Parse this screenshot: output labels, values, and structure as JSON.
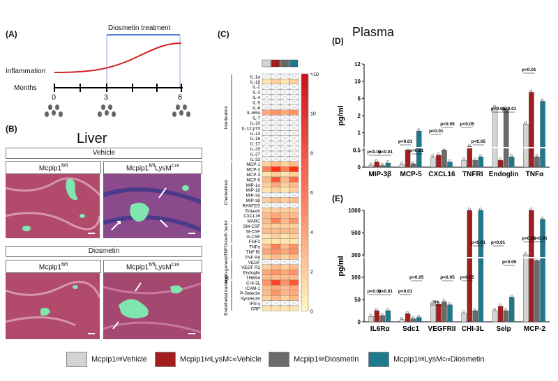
{
  "panels": {
    "A": "(A)",
    "B": "(B)",
    "C": "(C)",
    "D": "(D)",
    "E": "(E)"
  },
  "timeline": {
    "treatment_label": "Diosmetin treatment",
    "inflammation_label": "Inflammation",
    "months_label": "Months",
    "ticks": [
      "0",
      "3",
      "6"
    ]
  },
  "liver": {
    "title": "Liver",
    "vehicle_header": "Vehicle",
    "diosmetin_header": "Diosmetin",
    "col1": "Mcpip1",
    "col1_sup": "fl/fl",
    "col2": "Mcpip1",
    "col2_sup": "fl/fl",
    "col2_tail": "LysM",
    "col2_tail_sup": "Cre"
  },
  "heatmap": {
    "rows": [
      "IL-1α",
      "IL-1β",
      "IL-2",
      "IL-3",
      "IL-4",
      "IL-5",
      "IL-6",
      "IL-6Rα",
      "IL-7",
      "IL-10",
      "IL-12 p70",
      "IL-13",
      "IL-16",
      "IL-17",
      "IL-25",
      "IL-27",
      "IL-33",
      "MCP-1",
      "MCP-2",
      "MCP-3",
      "MCP-5",
      "MIP-1α",
      "MIP-1β",
      "MIP-3α",
      "MIP-3β",
      "RANTES",
      "Eotaxin",
      "CXCL16",
      "MARC",
      "GM-CSF",
      "M-CSF",
      "G-CSF",
      "FGF2",
      "TNFα",
      "TNF RI",
      "TNF RII",
      "VEGF",
      "VEGF R2",
      "Endoglin",
      "THBS4",
      "CHI-3L",
      "ICAM-1",
      "P-Selectin",
      "Syndecan",
      "IFN-γ",
      "CRP"
    ],
    "groups": [
      "Interleukins",
      "Chemokines",
      "Growth factor",
      "TNF",
      "Angio-genesis",
      "Endothelial damage"
    ],
    "values": [
      [
        -1,
        -1,
        -1,
        -1
      ],
      [
        1,
        2,
        1,
        2
      ],
      [
        -1,
        -1,
        -1,
        -1
      ],
      [
        -1,
        -1,
        -1,
        -1
      ],
      [
        -1,
        -1,
        -1,
        -1
      ],
      [
        -1,
        -1,
        -1,
        -1
      ],
      [
        -1,
        -1,
        -1,
        -1
      ],
      [
        4,
        5,
        4,
        5
      ],
      [
        -1,
        -1,
        -1,
        -1
      ],
      [
        -1,
        -1,
        -1,
        -1
      ],
      [
        -1,
        -1,
        -1,
        -1
      ],
      [
        -1,
        -1,
        -1,
        -1
      ],
      [
        -1,
        -1,
        -1,
        -1
      ],
      [
        -1,
        -1,
        -1,
        -1
      ],
      [
        -1,
        -1,
        -1,
        -1
      ],
      [
        -1,
        -1,
        -1,
        -1
      ],
      [
        -1,
        -1,
        -1,
        -1
      ],
      [
        2,
        3,
        2,
        3
      ],
      [
        6,
        10,
        6,
        10
      ],
      [
        1,
        2,
        1,
        2
      ],
      [
        3,
        8,
        3,
        7
      ],
      [
        2,
        4,
        2,
        3
      ],
      [
        1,
        2,
        1,
        2
      ],
      [
        -1,
        -1,
        -1,
        -1
      ],
      [
        2,
        3,
        2,
        3
      ],
      [
        -1,
        -1,
        -1,
        -1
      ],
      [
        2,
        2,
        2,
        2
      ],
      [
        3,
        4,
        3,
        3
      ],
      [
        3,
        6,
        3,
        5
      ],
      [
        2,
        2,
        2,
        2
      ],
      [
        3,
        3,
        3,
        3
      ],
      [
        1,
        2,
        1,
        2
      ],
      [
        1,
        1,
        1,
        1
      ],
      [
        3,
        6,
        3,
        5
      ],
      [
        4,
        5,
        4,
        5
      ],
      [
        2,
        3,
        2,
        3
      ],
      [
        -1,
        -1,
        -1,
        -1
      ],
      [
        2,
        3,
        2,
        3
      ],
      [
        4,
        5,
        4,
        5
      ],
      [
        3,
        3,
        3,
        3
      ],
      [
        5,
        9,
        5,
        8
      ],
      [
        3,
        4,
        3,
        4
      ],
      [
        3,
        5,
        3,
        4
      ],
      [
        2,
        3,
        2,
        3
      ],
      [
        -1,
        -1,
        -1,
        -1
      ],
      [
        1,
        1,
        1,
        1
      ]
    ],
    "stars": [
      "IL-6Rα",
      "MCP-2",
      "MCP-5",
      "MIP-3β",
      "CXCL16",
      "TNFα",
      "TNF RI",
      "TNF RII",
      "VEGF R2",
      "Endoglin",
      "CHI-3L",
      "P-Selectin",
      "Syndecan"
    ],
    "scale_ticks": [
      ">10",
      "10",
      "8",
      "6",
      "4",
      "2",
      "0"
    ],
    "header_colors": [
      "#d4d4d4",
      "#a31d1d",
      "#6a6a6a",
      "#1c7a8c"
    ]
  },
  "plasma": {
    "title": "Plasma",
    "chart_D": {
      "type": "bar",
      "ylabel": "pg/ml",
      "yticks": [
        "0",
        "0.5",
        "1",
        "2",
        "5",
        "10",
        "12"
      ],
      "categories": [
        "MIP-3β",
        "MCP-5",
        "CXCL16",
        "TNFRI",
        "Endoglin",
        "TNFα"
      ],
      "series": [
        {
          "name": "Mcpip1 fl/fl Vehicle",
          "values": [
            0.05,
            0.08,
            0.3,
            0.2,
            3.4,
            1.5
          ]
        },
        {
          "name": "Mcpip1 fl/fl LysM Cre Vehicle",
          "values": [
            0.15,
            0.5,
            0.35,
            0.6,
            0.2,
            6.8
          ]
        },
        {
          "name": "Mcpip1 fl/fl Diosmetin",
          "values": [
            0.05,
            0.1,
            0.5,
            0.2,
            3.2,
            0.3
          ]
        },
        {
          "name": "Mcpip1 fl/fl LysM Cre Diosmetin",
          "values": [
            0.12,
            1.1,
            0.15,
            0.3,
            0.3,
            4.5
          ]
        }
      ],
      "annotations": [
        "p<0.01",
        "p<0.01",
        "p<0.01",
        "p<0.01",
        "p<0.01",
        "p<0.05",
        "p<0.05",
        "p<0.05",
        "p<0.01",
        "p<0.01",
        "p<0.01"
      ]
    },
    "chart_E": {
      "type": "bar",
      "ylabel": "pg/ml",
      "yticks": [
        "0",
        "50",
        "100",
        "300",
        "500",
        "1000"
      ],
      "categories": [
        "IL6Rα",
        "Sdc1",
        "VEGFRII",
        "CHI-3L",
        "Selp",
        "MCP-2"
      ],
      "series": [
        {
          "name": "Mcpip1 fl/fl Vehicle",
          "values": [
            12,
            5,
            42,
            20,
            25,
            300
          ]
        },
        {
          "name": "Mcpip1 fl/fl LysM Cre Vehicle",
          "values": [
            25,
            18,
            40,
            1000,
            35,
            1000
          ]
        },
        {
          "name": "Mcpip1 fl/fl Diosmetin",
          "values": [
            14,
            7,
            45,
            25,
            25,
            250
          ]
        },
        {
          "name": "Mcpip1 fl/fl LysM Cre Diosmetin",
          "values": [
            25,
            10,
            38,
            1000,
            55,
            800
          ]
        }
      ],
      "annotations": [
        "p<0.01",
        "p<0.01",
        "p<0.01",
        "p<0.05",
        "ns",
        "p<0.05",
        "p<0.05",
        "p<0.01",
        "p<0.01",
        "p<0.05",
        "p<0.01",
        "p<0.01"
      ]
    }
  },
  "legend": [
    {
      "label": "Mcpip1",
      "sup": "fl/fl",
      "tail": " Vehicle",
      "color": "#d4d4d4"
    },
    {
      "label": "Mcpip1",
      "sup": "fl/fl",
      "tail": "LysM",
      "tail_sup": "Cre",
      "end": " Vehicle",
      "color": "#a31d1d"
    },
    {
      "label": "Mcpip1",
      "sup": "fl/fl",
      "tail": " Diosmetin",
      "color": "#6a6a6a"
    },
    {
      "label": "Mcpip1",
      "sup": "fl/fl",
      "tail": "LysM",
      "tail_sup": "Cre",
      "end": " Diosmetin",
      "color": "#1c7a8c"
    }
  ]
}
